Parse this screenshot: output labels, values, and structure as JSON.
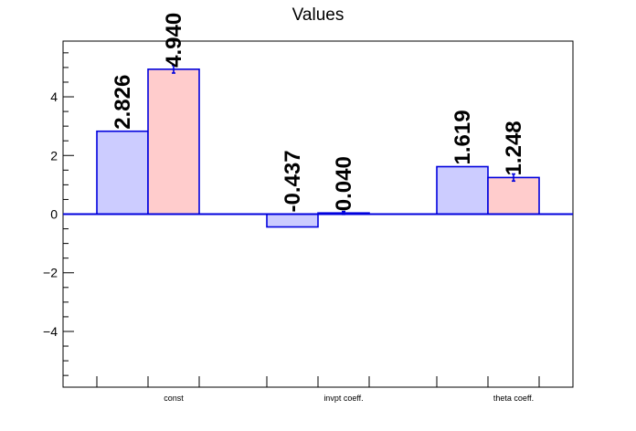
{
  "chart_data": {
    "type": "bar",
    "title": "Values",
    "xlabel": "",
    "ylabel": "",
    "categories": [
      "const",
      "invpt coeff.",
      "theta coeff."
    ],
    "ylim": [
      -5.9,
      5.9
    ],
    "yticks": [
      -4,
      -2,
      0,
      2,
      4
    ],
    "ytick_labels": [
      "−4",
      "−2",
      "0",
      "2",
      "4"
    ],
    "grid": false,
    "series": [
      {
        "values": [
          2.826,
          -0.437,
          1.619
        ],
        "labels": [
          "2.826",
          "-0.437",
          "1.619"
        ],
        "errors": [
          0,
          0,
          0
        ],
        "fill": "#ccccff",
        "edge": "#0000dd"
      },
      {
        "values": [
          4.94,
          0.04,
          1.248
        ],
        "labels": [
          "4.940",
          "0.040",
          "1.248"
        ],
        "errors": [
          0.13,
          0.05,
          0.12
        ],
        "fill": "#ffcccc",
        "edge": "#0000dd"
      }
    ]
  }
}
